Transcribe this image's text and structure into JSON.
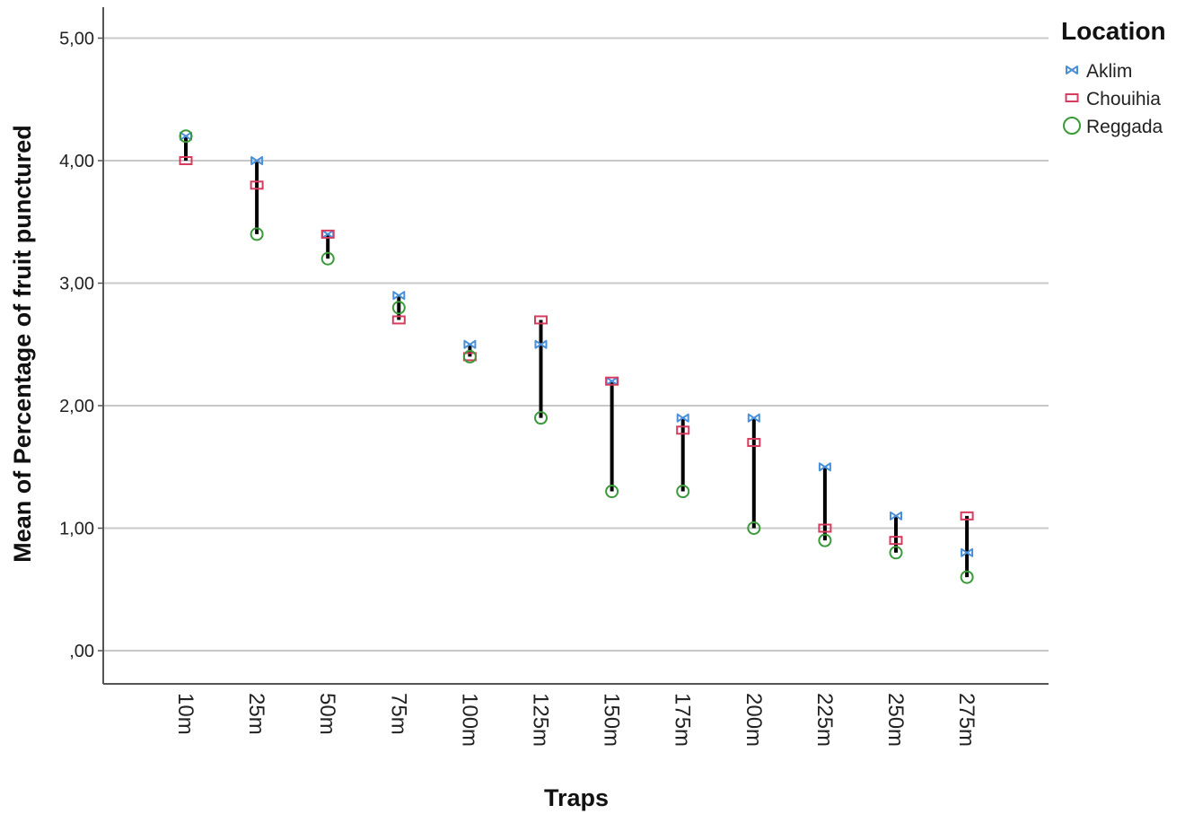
{
  "chart_data": {
    "type": "scatter",
    "subtype": "high-low dropline",
    "title": "",
    "xlabel": "Traps",
    "ylabel": "Mean of Percentage of fruit punctured",
    "ylim": [
      -0.25,
      5.25
    ],
    "yticks": [
      0,
      1,
      2,
      3,
      4,
      5
    ],
    "ytick_labels": [
      ",00",
      "1,00",
      "2,00",
      "3,00",
      "4,00",
      "5,00"
    ],
    "grid": "horizontal",
    "legend_position": "top-right",
    "categories": [
      "10m",
      "25m",
      "50m",
      "75m",
      "100m",
      "125m",
      "150m",
      "175m",
      "200m",
      "225m",
      "250m",
      "275m"
    ],
    "legend_title": "Location",
    "series": [
      {
        "name": "Aklim",
        "marker": "bowtie",
        "color": "#4a90d9",
        "values": [
          4.2,
          4.0,
          3.4,
          2.9,
          2.5,
          2.5,
          2.2,
          1.9,
          1.9,
          1.5,
          1.1,
          0.8
        ]
      },
      {
        "name": "Chouihia",
        "marker": "square",
        "color": "#d63c5e",
        "values": [
          4.0,
          3.8,
          3.4,
          2.7,
          2.4,
          2.7,
          2.2,
          1.8,
          1.7,
          1.0,
          0.9,
          1.1
        ]
      },
      {
        "name": "Reggada",
        "marker": "circle",
        "color": "#3a9a3a",
        "values": [
          4.2,
          3.4,
          3.2,
          2.8,
          2.4,
          1.9,
          1.3,
          1.3,
          1.0,
          0.9,
          0.8,
          0.6
        ]
      }
    ],
    "dropline_color": "#000000"
  }
}
